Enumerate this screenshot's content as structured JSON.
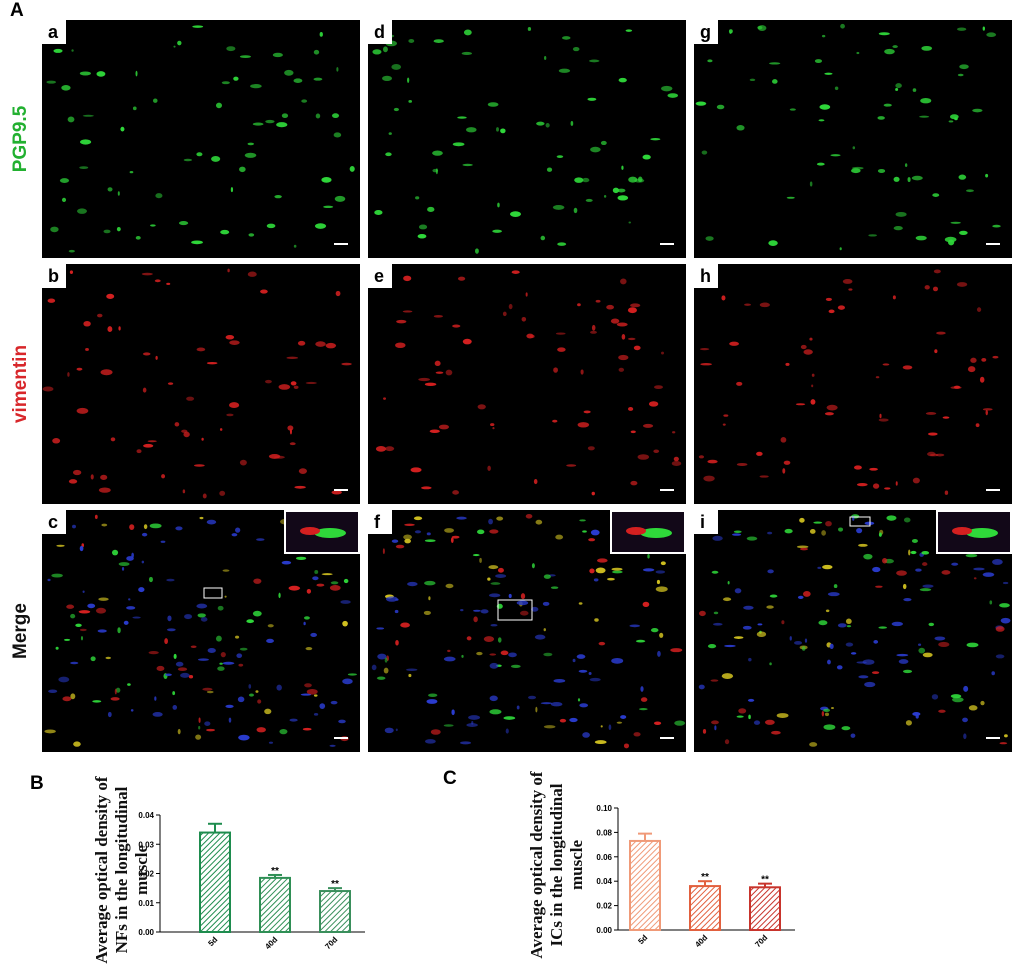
{
  "figure": {
    "label": "A",
    "row_labels": [
      "PGP9.5",
      "vimentin",
      "Merge"
    ],
    "panel_letters": [
      "a",
      "d",
      "g",
      "b",
      "e",
      "h",
      "c",
      "f",
      "i"
    ]
  },
  "chart_data": [
    {
      "type": "bar",
      "label": "B",
      "y_label": "Average optical density of NFs in the longitudinal muscle",
      "categories": [
        "5d",
        "40d",
        "70d"
      ],
      "values": [
        0.034,
        0.0185,
        0.014
      ],
      "errors": [
        0.003,
        0.001,
        0.001
      ],
      "annotations": [
        null,
        "**",
        "**"
      ],
      "colors": [
        "#1e8c4e",
        "#2f8f55",
        "#3a8f5c"
      ],
      "ylim": [
        0,
        0.04
      ],
      "yticks": [
        {
          "value": 0,
          "label": "0.00"
        },
        {
          "value": 0.01,
          "label": "0.01"
        },
        {
          "value": 0.02,
          "label": "0.02"
        },
        {
          "value": 0.03,
          "label": "0.03"
        },
        {
          "value": 0.04,
          "label": "0.04"
        }
      ]
    },
    {
      "type": "bar",
      "label": "C",
      "y_label": "Average optical density of ICs in the longitudinal muscle",
      "categories": [
        "5d",
        "40d",
        "70d"
      ],
      "values": [
        0.073,
        0.036,
        0.035
      ],
      "errors": [
        0.006,
        0.004,
        0.003
      ],
      "annotations": [
        null,
        "**",
        "**"
      ],
      "colors": [
        "#f09a78",
        "#e2603e",
        "#c8342c"
      ],
      "ylim": [
        0,
        0.1
      ],
      "yticks": [
        {
          "value": 0,
          "label": "0.00"
        },
        {
          "value": 0.02,
          "label": "0.02"
        },
        {
          "value": 0.04,
          "label": "0.04"
        },
        {
          "value": 0.06,
          "label": "0.06"
        },
        {
          "value": 0.08,
          "label": "0.08"
        },
        {
          "value": 0.1,
          "label": "0.10"
        }
      ]
    }
  ]
}
